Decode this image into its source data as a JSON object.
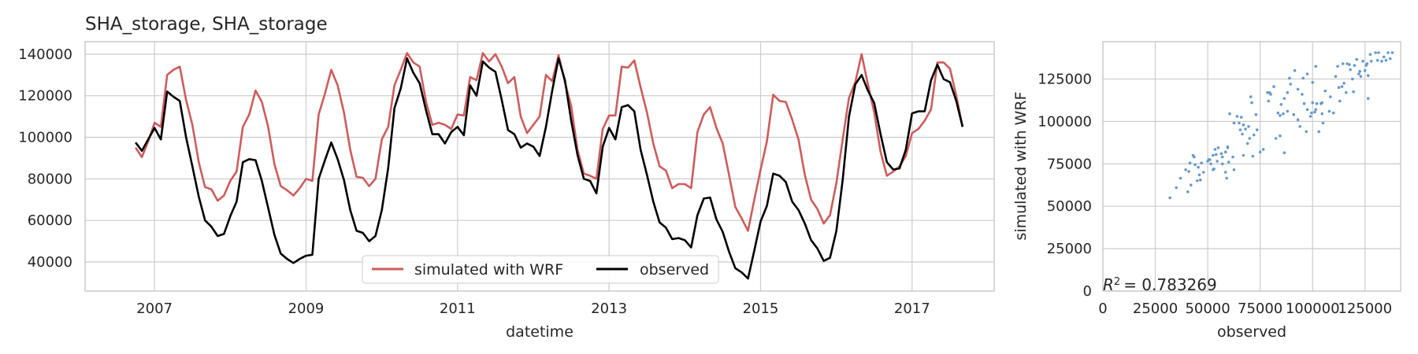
{
  "title": "SHA_storage, SHA_storage",
  "chart_data": [
    {
      "type": "line",
      "xlabel": "datetime",
      "ylabel": "",
      "ylim": [
        26000,
        146000
      ],
      "xlim": [
        "2006-02-01",
        "2018-02-01"
      ],
      "grid": true,
      "legend_position": "lower-center",
      "x_ticks": [
        "2007",
        "2009",
        "2011",
        "2013",
        "2015",
        "2017"
      ],
      "y_ticks": [
        "40000",
        "60000",
        "80000",
        "100000",
        "120000",
        "140000"
      ],
      "x": [
        "2006-10",
        "2006-11",
        "2006-12",
        "2007-01",
        "2007-02",
        "2007-03",
        "2007-04",
        "2007-05",
        "2007-06",
        "2007-07",
        "2007-08",
        "2007-09",
        "2007-10",
        "2007-11",
        "2007-12",
        "2008-01",
        "2008-02",
        "2008-03",
        "2008-04",
        "2008-05",
        "2008-06",
        "2008-07",
        "2008-08",
        "2008-09",
        "2008-10",
        "2008-11",
        "2008-12",
        "2009-01",
        "2009-02",
        "2009-03",
        "2009-04",
        "2009-05",
        "2009-06",
        "2009-07",
        "2009-08",
        "2009-09",
        "2009-10",
        "2009-11",
        "2009-12",
        "2010-01",
        "2010-02",
        "2010-03",
        "2010-04",
        "2010-05",
        "2010-06",
        "2010-07",
        "2010-08",
        "2010-09",
        "2010-10",
        "2010-11",
        "2010-12",
        "2011-01",
        "2011-02",
        "2011-03",
        "2011-04",
        "2011-05",
        "2011-06",
        "2011-07",
        "2011-08",
        "2011-09",
        "2011-10",
        "2011-11",
        "2011-12",
        "2012-01",
        "2012-02",
        "2012-03",
        "2012-04",
        "2012-05",
        "2012-06",
        "2012-07",
        "2012-08",
        "2012-09",
        "2012-10",
        "2012-11",
        "2012-12",
        "2013-01",
        "2013-02",
        "2013-03",
        "2013-04",
        "2013-05",
        "2013-06",
        "2013-07",
        "2013-08",
        "2013-09",
        "2013-10",
        "2013-11",
        "2013-12",
        "2014-01",
        "2014-02",
        "2014-03",
        "2014-04",
        "2014-05",
        "2014-06",
        "2014-07",
        "2014-08",
        "2014-09",
        "2014-10",
        "2014-11",
        "2014-12",
        "2015-01",
        "2015-02",
        "2015-03",
        "2015-04",
        "2015-05",
        "2015-06",
        "2015-07",
        "2015-08",
        "2015-09",
        "2015-10",
        "2015-11",
        "2015-12",
        "2016-01",
        "2016-02",
        "2016-03",
        "2016-04",
        "2016-05",
        "2016-06",
        "2016-07",
        "2016-08",
        "2016-09",
        "2016-10",
        "2016-11",
        "2016-12",
        "2017-01",
        "2017-02",
        "2017-03",
        "2017-04",
        "2017-05",
        "2017-06",
        "2017-07",
        "2017-08",
        "2017-09"
      ],
      "series": [
        {
          "name": "simulated with WRF",
          "color": "#cd5c5c",
          "values": [
            95000,
            90500,
            98000,
            107000,
            105000,
            130000,
            132500,
            134000,
            118000,
            106000,
            88000,
            76000,
            75000,
            69500,
            72000,
            79000,
            83500,
            105000,
            111000,
            122500,
            117000,
            105000,
            87000,
            76500,
            74500,
            72000,
            75500,
            80000,
            79000,
            111000,
            121000,
            132500,
            125000,
            112000,
            94000,
            81000,
            80500,
            76500,
            80000,
            99000,
            105000,
            125000,
            132500,
            140500,
            136000,
            134000,
            117000,
            106000,
            107000,
            106000,
            104000,
            111000,
            110500,
            129000,
            127500,
            140500,
            136500,
            140000,
            134000,
            126000,
            129000,
            110000,
            102000,
            106000,
            110000,
            130000,
            127000,
            139500,
            126500,
            115000,
            94000,
            82500,
            81500,
            80000,
            104000,
            110500,
            110500,
            134000,
            133500,
            137000,
            124000,
            112000,
            97000,
            86000,
            84000,
            75500,
            77500,
            77500,
            75500,
            102500,
            111000,
            114500,
            104500,
            97000,
            82000,
            66500,
            61000,
            55000,
            70000,
            84500,
            98000,
            120500,
            117500,
            117000,
            108500,
            99000,
            82000,
            70000,
            65500,
            58500,
            62500,
            78000,
            99000,
            119000,
            126500,
            140000,
            125500,
            112000,
            93000,
            81500,
            83500,
            86000,
            91000,
            102000,
            104000,
            108000,
            113500,
            136000,
            136000,
            133000,
            120000,
            105000
          ]
        },
        {
          "name": "observed",
          "color": "#000000",
          "values": [
            97500,
            93500,
            99000,
            104500,
            99000,
            122000,
            119500,
            117500,
            100000,
            86000,
            71500,
            60000,
            57000,
            52500,
            53500,
            62000,
            69000,
            88000,
            89500,
            89000,
            79000,
            66000,
            53000,
            44000,
            41500,
            39500,
            41500,
            43000,
            43500,
            80000,
            89000,
            97500,
            89500,
            79500,
            65000,
            55000,
            54000,
            50000,
            52500,
            65000,
            85000,
            114000,
            123500,
            138000,
            131000,
            126000,
            113000,
            101500,
            101500,
            97000,
            102500,
            105000,
            101000,
            125000,
            120000,
            136500,
            133500,
            131500,
            118000,
            103500,
            101500,
            95000,
            97000,
            95500,
            91000,
            105000,
            122500,
            138000,
            127500,
            108000,
            91500,
            80000,
            79000,
            73000,
            95500,
            104500,
            99000,
            114500,
            115500,
            112500,
            94000,
            82000,
            69000,
            59000,
            56500,
            51000,
            51500,
            50500,
            47000,
            62500,
            70500,
            71000,
            60500,
            54500,
            45000,
            37000,
            35000,
            32000,
            45500,
            59500,
            67000,
            82500,
            81500,
            78500,
            69000,
            65000,
            58500,
            50500,
            46500,
            40500,
            42000,
            55000,
            79500,
            110000,
            125500,
            130000,
            122500,
            116500,
            101500,
            88000,
            84500,
            85000,
            94000,
            111500,
            112500,
            112500,
            127500,
            135000,
            128000,
            126500,
            117500,
            105000
          ]
        }
      ]
    },
    {
      "type": "scatter",
      "xlabel": "observed",
      "ylabel": "simulated with WRF",
      "xlim": [
        0,
        142000
      ],
      "ylim": [
        0,
        147000
      ],
      "grid": true,
      "x_ticks": [
        "0",
        "25000",
        "50000",
        "75000",
        "100000",
        "125000"
      ],
      "y_ticks": [
        "0",
        "25000",
        "50000",
        "75000",
        "100000",
        "125000"
      ],
      "annotation": "R^2 = 0.783269",
      "annotation_prefix": "R",
      "annotation_value": "= 0.783269",
      "point_color": "#6699cc",
      "points": [
        [
          32000,
          55000
        ],
        [
          35000,
          61000
        ],
        [
          37000,
          66500
        ],
        [
          39500,
          71500
        ],
        [
          41000,
          70500
        ],
        [
          41500,
          75500
        ],
        [
          43000,
          80000
        ],
        [
          43500,
          79000
        ],
        [
          40500,
          58500
        ],
        [
          42000,
          62500
        ],
        [
          44000,
          74500
        ],
        [
          45000,
          65000
        ],
        [
          46500,
          65500
        ],
        [
          47000,
          75500
        ],
        [
          50000,
          76500
        ],
        [
          50500,
          77500
        ],
        [
          51000,
          77500
        ],
        [
          51500,
          75000
        ],
        [
          52500,
          80000
        ],
        [
          53000,
          72000
        ],
        [
          53500,
          83500
        ],
        [
          54000,
          80500
        ],
        [
          54500,
          76500
        ],
        [
          55000,
          84500
        ],
        [
          56500,
          81000
        ],
        [
          57000,
          75000
        ],
        [
          58500,
          70000
        ],
        [
          59000,
          66500
        ],
        [
          59500,
          84500
        ],
        [
          60000,
          76000
        ],
        [
          60500,
          104500
        ],
        [
          62000,
          79000
        ],
        [
          62500,
          99000
        ],
        [
          64000,
          103000
        ],
        [
          65000,
          99000
        ],
        [
          65500,
          95000
        ],
        [
          66000,
          102500
        ],
        [
          67000,
          98000
        ],
        [
          68000,
          95500
        ],
        [
          69000,
          87000
        ],
        [
          69500,
          97000
        ],
        [
          70500,
          114500
        ],
        [
          71000,
          111000
        ],
        [
          71500,
          79500
        ],
        [
          72000,
          92000
        ],
        [
          73000,
          104000
        ],
        [
          75000,
          82000
        ],
        [
          76500,
          83500
        ],
        [
          78500,
          117000
        ],
        [
          79000,
          112000
        ],
        [
          79500,
          117000
        ],
        [
          80000,
          116000
        ],
        [
          81500,
          120500
        ],
        [
          82500,
          90000
        ],
        [
          83500,
          105000
        ],
        [
          84500,
          91500
        ],
        [
          85000,
          110000
        ],
        [
          86000,
          104500
        ],
        [
          86500,
          81500
        ],
        [
          88000,
          106000
        ],
        [
          89000,
          125500
        ],
        [
          89500,
          122000
        ],
        [
          91000,
          104000
        ],
        [
          91500,
          130000
        ],
        [
          93000,
          101000
        ],
        [
          94000,
          97000
        ],
        [
          95500,
          125500
        ],
        [
          96000,
          110500
        ],
        [
          97000,
          94000
        ],
        [
          97500,
          107000
        ],
        [
          99000,
          103000
        ],
        [
          99500,
          105000
        ],
        [
          100000,
          111000
        ],
        [
          101000,
          105500
        ],
        [
          101500,
          107000
        ],
        [
          102000,
          110500
        ],
        [
          103000,
          94000
        ],
        [
          104000,
          110500
        ],
        [
          104500,
          111000
        ],
        [
          105000,
          99000
        ],
        [
          108000,
          106000
        ],
        [
          110000,
          105000
        ],
        [
          111000,
          126500
        ],
        [
          112000,
          132500
        ],
        [
          112500,
          120000
        ],
        [
          113000,
          112000
        ],
        [
          114000,
          120500
        ],
        [
          114500,
          134000
        ],
        [
          115000,
          122500
        ],
        [
          116000,
          117000
        ],
        [
          116500,
          134000
        ],
        [
          117500,
          133500
        ],
        [
          118000,
          130500
        ],
        [
          119000,
          125000
        ],
        [
          120000,
          133000
        ],
        [
          121000,
          136500
        ],
        [
          122000,
          128000
        ],
        [
          122500,
          129500
        ],
        [
          123000,
          126500
        ],
        [
          124000,
          135500
        ],
        [
          125000,
          130000
        ],
        [
          125500,
          133000
        ],
        [
          126000,
          134000
        ],
        [
          126500,
          113500
        ],
        [
          127500,
          139500
        ],
        [
          128000,
          135500
        ],
        [
          130000,
          140500
        ],
        [
          131000,
          136000
        ],
        [
          131500,
          140500
        ],
        [
          133000,
          135500
        ],
        [
          134000,
          138000
        ],
        [
          135000,
          136000
        ],
        [
          136000,
          140500
        ],
        [
          137000,
          137000
        ],
        [
          138000,
          140500
        ],
        [
          101500,
          132500
        ],
        [
          106000,
          118000
        ],
        [
          95000,
          116000
        ],
        [
          86500,
          113500
        ],
        [
          97500,
          128000
        ],
        [
          66500,
          92500
        ],
        [
          59500,
          85000
        ],
        [
          48000,
          70000
        ],
        [
          52500,
          71500
        ],
        [
          57000,
          79000
        ],
        [
          62500,
          71500
        ],
        [
          45500,
          73000
        ],
        [
          46000,
          68500
        ],
        [
          67000,
          80000
        ],
        [
          84500,
          103500
        ],
        [
          93000,
          119000
        ],
        [
          104500,
          104500
        ],
        [
          88000,
          117000
        ],
        [
          100000,
          123000
        ],
        [
          108500,
          114500
        ],
        [
          119500,
          117500
        ],
        [
          126500,
          127000
        ],
        [
          58500,
          82000
        ],
        [
          73500,
          95000
        ],
        [
          70000,
          90000
        ]
      ]
    }
  ]
}
